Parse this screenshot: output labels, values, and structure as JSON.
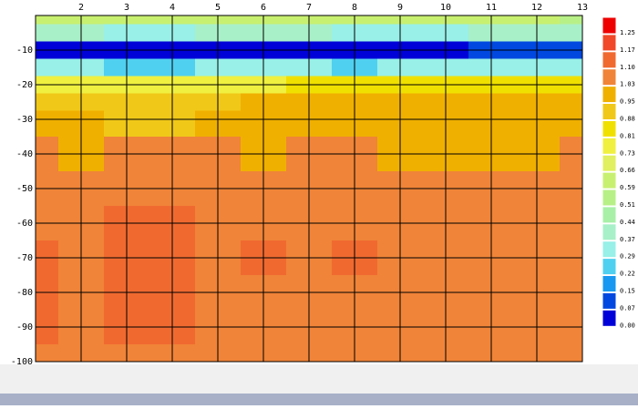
{
  "chart_data": {
    "type": "contour",
    "x": [
      1,
      2,
      3,
      4,
      5,
      6,
      7,
      8,
      9,
      10,
      11,
      12,
      13
    ],
    "y": [
      0,
      -5,
      -10,
      -15,
      -20,
      -25,
      -30,
      -40,
      -50,
      -60,
      -70,
      -80,
      -90,
      -100
    ],
    "z": [
      [
        0.62,
        0.62,
        0.6,
        0.6,
        0.6,
        0.62,
        0.6,
        0.62,
        0.62,
        0.62,
        0.6,
        0.6,
        0.58
      ],
      [
        0.4,
        0.38,
        0.35,
        0.36,
        0.38,
        0.4,
        0.4,
        0.36,
        0.35,
        0.36,
        0.38,
        0.4,
        0.42
      ],
      [
        0.05,
        0.03,
        0.03,
        0.04,
        0.06,
        0.06,
        0.06,
        0.04,
        0.05,
        0.06,
        0.07,
        0.08,
        0.1
      ],
      [
        0.3,
        0.3,
        0.28,
        0.28,
        0.3,
        0.3,
        0.3,
        0.28,
        0.3,
        0.3,
        0.3,
        0.32,
        0.32
      ],
      [
        0.75,
        0.74,
        0.73,
        0.78,
        0.8,
        0.8,
        0.82,
        0.84,
        0.84,
        0.84,
        0.86,
        0.86,
        0.86
      ],
      [
        0.9,
        0.9,
        0.88,
        0.92,
        0.94,
        0.95,
        0.96,
        0.96,
        0.96,
        0.96,
        0.98,
        0.98,
        0.98
      ],
      [
        0.96,
        0.95,
        0.9,
        0.93,
        0.96,
        0.97,
        0.98,
        0.98,
        0.99,
        1.0,
        1.0,
        1.0,
        1.01
      ],
      [
        1.04,
        1.02,
        1.05,
        1.05,
        1.03,
        1.02,
        1.04,
        1.03,
        1.02,
        1.01,
        1.02,
        1.02,
        1.05
      ],
      [
        1.06,
        1.07,
        1.09,
        1.08,
        1.07,
        1.07,
        1.07,
        1.07,
        1.07,
        1.07,
        1.07,
        1.07,
        1.07
      ],
      [
        1.09,
        1.08,
        1.11,
        1.11,
        1.09,
        1.08,
        1.08,
        1.08,
        1.08,
        1.08,
        1.08,
        1.08,
        1.08
      ],
      [
        1.11,
        1.08,
        1.12,
        1.12,
        1.09,
        1.11,
        1.08,
        1.11,
        1.09,
        1.08,
        1.08,
        1.08,
        1.08
      ],
      [
        1.11,
        1.09,
        1.12,
        1.12,
        1.09,
        1.08,
        1.08,
        1.08,
        1.08,
        1.08,
        1.08,
        1.08,
        1.08
      ],
      [
        1.11,
        1.09,
        1.12,
        1.11,
        1.09,
        1.08,
        1.08,
        1.08,
        1.08,
        1.08,
        1.08,
        1.08,
        1.08
      ],
      [
        1.09,
        1.09,
        1.09,
        1.08,
        1.08,
        1.08,
        1.08,
        1.08,
        1.08,
        1.07,
        1.07,
        1.08,
        1.08
      ]
    ],
    "xlim": [
      1,
      13
    ],
    "ylim": [
      -100,
      0
    ],
    "xticks": [
      2,
      3,
      4,
      5,
      6,
      7,
      8,
      9,
      10,
      11,
      12,
      13
    ],
    "yticks": [
      -10,
      -20,
      -30,
      -40,
      -50,
      -60,
      -70,
      -80,
      -90,
      -100
    ],
    "grid": true,
    "levels": [
      1.25,
      {
        "value": 1.17,
        "label": "1.17"
      },
      {
        "value": 1.1,
        "label": "1.10"
      },
      {
        "value": 1.03,
        "label": "1.03"
      },
      {
        "value": 0.95,
        "label": "0.95"
      },
      {
        "value": 0.88,
        "label": "0.88"
      },
      {
        "value": 0.81,
        "label": "0.81"
      },
      {
        "value": 0.73,
        "label": "0.73"
      },
      {
        "value": 0.66,
        "label": "0.66"
      },
      {
        "value": 0.59,
        "label": "0.59"
      },
      {
        "value": 0.51,
        "label": "0.51"
      },
      {
        "value": 0.44,
        "label": "0.44"
      },
      {
        "value": 0.37,
        "label": "0.37"
      },
      {
        "value": 0.29,
        "label": "0.29"
      },
      {
        "value": 0.22,
        "label": "0.22"
      },
      {
        "value": 0.15,
        "label": "0.15"
      },
      {
        "value": 0.07,
        "label": "0.07"
      },
      {
        "value": 0,
        "label": "0.00"
      }
    ],
    "level_colors": [
      "#ee0000",
      "#f04828",
      "#f06a30",
      "#f08438",
      "#f0b000",
      "#f0c818",
      "#f0e000",
      "#f0f040",
      "#e0f060",
      "#c8f070",
      "#b8f088",
      "#a8f0a8",
      "#a8f0c8",
      "#98f0e8",
      "#50d0f0",
      "#1898f0",
      "#0048e0",
      "#0000d8"
    ]
  }
}
